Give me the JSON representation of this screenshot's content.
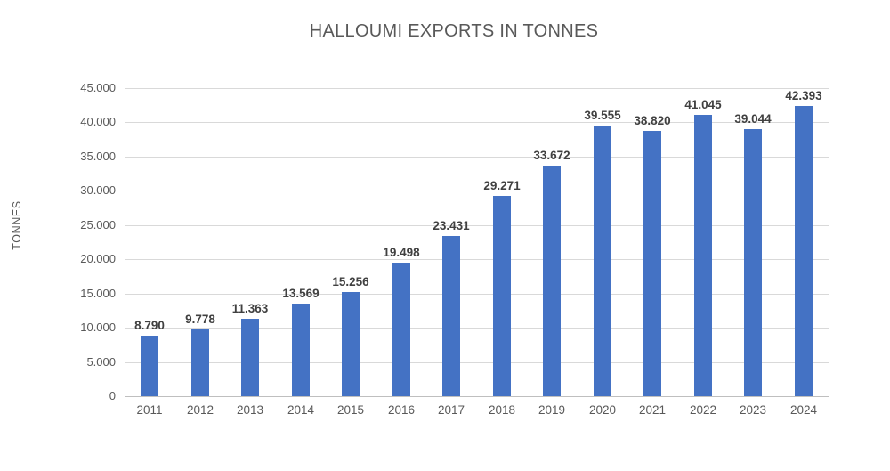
{
  "chart_data": {
    "type": "bar",
    "title": "HALLOUMI EXPORTS IN TONNES",
    "xlabel": "",
    "ylabel": "TONNES",
    "categories": [
      "2011",
      "2012",
      "2013",
      "2014",
      "2015",
      "2016",
      "2017",
      "2018",
      "2019",
      "2020",
      "2021",
      "2022",
      "2023",
      "2024"
    ],
    "values": [
      8790,
      9778,
      11363,
      13569,
      15256,
      19498,
      23431,
      29271,
      33672,
      39555,
      38820,
      41045,
      39044,
      42393
    ],
    "value_labels": [
      "8.790",
      "9.778",
      "11.363",
      "13.569",
      "15.256",
      "19.498",
      "23.431",
      "29.271",
      "33.672",
      "39.555",
      "38.820",
      "41.045",
      "39.044",
      "42.393"
    ],
    "ytick_labels": [
      "45.000",
      "40.000",
      "35.000",
      "30.000",
      "25.000",
      "20.000",
      "15.000",
      "10.000",
      "5.000",
      "0"
    ],
    "ylim": [
      0,
      45000
    ],
    "grid": "horizontal-only",
    "legend": "none",
    "colors": {
      "bar_fill": "#4472C4",
      "gridline": "#D9D9D9",
      "axis_line": "#BFBFBF",
      "title_text": "#595959",
      "tick_text": "#595959",
      "data_label_text": "#404040",
      "background": "#FFFFFF"
    }
  }
}
